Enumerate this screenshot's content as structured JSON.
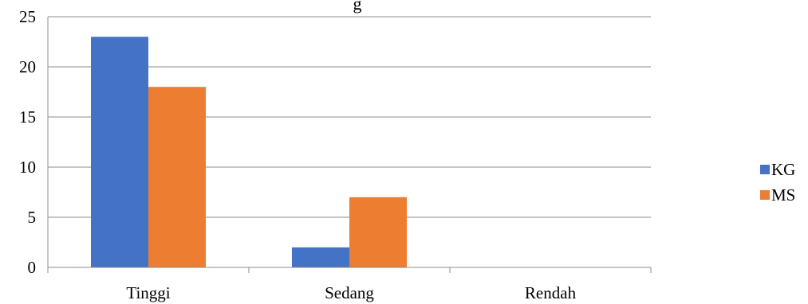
{
  "chart_data": {
    "type": "bar",
    "title": "g",
    "categories": [
      "Tinggi",
      "Sedang",
      "Rendah"
    ],
    "series": [
      {
        "name": "KG",
        "values": [
          23,
          2,
          0
        ],
        "color": "#4472C4"
      },
      {
        "name": "MS",
        "values": [
          18,
          7,
          0
        ],
        "color": "#ED7D31"
      }
    ],
    "yticks": [
      "0",
      "5",
      "10",
      "15",
      "20",
      "25"
    ],
    "ylim": [
      0,
      25
    ],
    "grid": true,
    "legend_position": "right"
  }
}
